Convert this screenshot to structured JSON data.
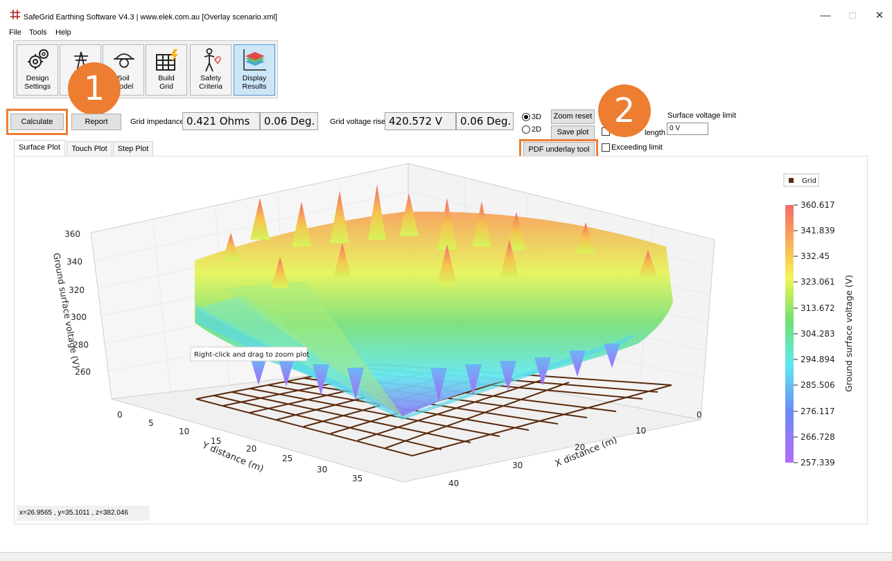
{
  "window": {
    "title": "SafeGrid Earthing Software V4.3 | www.elek.com.au [Overlay scenario.xml]",
    "minimize": "—",
    "maximize": "□",
    "close": "✕"
  },
  "menu": [
    "File",
    "Tools",
    "Help"
  ],
  "toolbar": {
    "design_settings": "Design\nSettings",
    "soil_model": "Soil\nModel",
    "build_grid": "Build\nGrid",
    "safety_criteria": "Safety\nCriteria",
    "display_results": "Display\nResults"
  },
  "badges": {
    "one": "1",
    "two": "2"
  },
  "controls": {
    "calculate": "Calculate",
    "report": "Report",
    "grid_impedance_label": "Grid impedance",
    "grid_impedance_value": "0.421 Ohms",
    "grid_impedance_angle": "0.06 Deg.",
    "grid_voltage_rise_label": "Grid voltage rise",
    "grid_voltage_rise_value": "420.572 V",
    "grid_voltage_rise_angle": "0.06 Deg.",
    "view_3d": "3D",
    "view_2d": "2D",
    "zoom_reset": "Zoom reset",
    "save_plot": "Save plot",
    "pdf_underlay": "PDF underlay tool",
    "grid_length_label": "length",
    "exceeding_limit": "Exceeding limit",
    "surface_voltage_limit_label": "Surface voltage limit",
    "surface_voltage_limit_value": "0 V"
  },
  "tabs": [
    "Surface Plot",
    "Touch Plot",
    "Step Plot"
  ],
  "plot": {
    "legend": "Grid",
    "hint": "Right-click and drag to zoom plot",
    "coords": "x=26.9565    , y=35.1011    , z=382.046",
    "z_label": "Ground surface voltage (V)",
    "x_label": "X distance (m)",
    "y_label": "Y distance (m)",
    "colorbar_label": "Ground surface voltage (V)",
    "z_ticks": [
      "360",
      "340",
      "320",
      "300",
      "280",
      "260"
    ],
    "y_ticks": [
      "0",
      "5",
      "10",
      "15",
      "20",
      "25",
      "30",
      "35",
      "40"
    ],
    "x_ticks": [
      "0",
      "10",
      "20",
      "30"
    ],
    "colorbar_ticks": [
      "360.617",
      "341.839",
      "332.45",
      "323.061",
      "313.672",
      "304.283",
      "294.894",
      "285.506",
      "276.117",
      "266.728",
      "257.339"
    ],
    "colors": {
      "grid_brown": "#5a2a0c",
      "cb_top": "#f26b6b",
      "cb_green": "#6fe06f",
      "cb_cyan": "#5fe8f0",
      "cb_bottom": "#b66cf7"
    }
  }
}
